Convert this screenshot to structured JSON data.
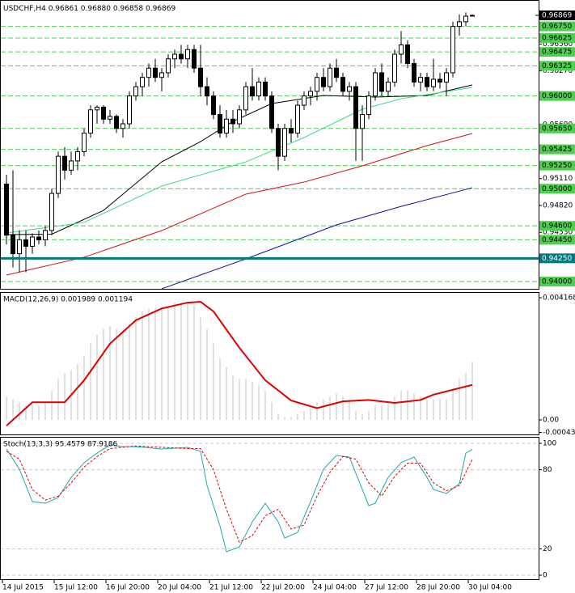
{
  "chart_data": [
    {
      "type": "candlestick",
      "title": "USDCHF,H4",
      "ohlc_labels": [
        "0.96861",
        "0.96880",
        "0.96858",
        "0.96869"
      ],
      "candles": [
        [
          0.9505,
          0.9515,
          0.944,
          0.945
        ],
        [
          0.945,
          0.952,
          0.9415,
          0.943
        ],
        [
          0.943,
          0.9455,
          0.941,
          0.9445
        ],
        [
          0.9445,
          0.9455,
          0.941,
          0.9438
        ],
        [
          0.9438,
          0.9452,
          0.943,
          0.9448
        ],
        [
          0.9448,
          0.9455,
          0.944,
          0.9445
        ],
        [
          0.9445,
          0.946,
          0.9438,
          0.9455
        ],
        [
          0.9455,
          0.95,
          0.945,
          0.9495
        ],
        [
          0.9495,
          0.954,
          0.949,
          0.9535
        ],
        [
          0.9535,
          0.9545,
          0.951,
          0.952
        ],
        [
          0.952,
          0.954,
          0.9515,
          0.953
        ],
        [
          0.953,
          0.9545,
          0.952,
          0.954
        ],
        [
          0.954,
          0.9565,
          0.9535,
          0.956
        ],
        [
          0.956,
          0.959,
          0.9555,
          0.9585
        ],
        [
          0.9585,
          0.959,
          0.957,
          0.9588
        ],
        [
          0.9588,
          0.959,
          0.957,
          0.9575
        ],
        [
          0.9575,
          0.9585,
          0.957,
          0.9578
        ],
        [
          0.9578,
          0.958,
          0.956,
          0.9565
        ],
        [
          0.9565,
          0.9575,
          0.9555,
          0.957
        ],
        [
          0.957,
          0.9605,
          0.9565,
          0.96
        ],
        [
          0.96,
          0.9615,
          0.9595,
          0.961
        ],
        [
          0.961,
          0.9625,
          0.96,
          0.962
        ],
        [
          0.962,
          0.9635,
          0.961,
          0.963
        ],
        [
          0.963,
          0.964,
          0.9615,
          0.962
        ],
        [
          0.962,
          0.963,
          0.9605,
          0.9625
        ],
        [
          0.9625,
          0.9645,
          0.962,
          0.964
        ],
        [
          0.964,
          0.965,
          0.963,
          0.9645
        ],
        [
          0.9645,
          0.9655,
          0.9635,
          0.964
        ],
        [
          0.964,
          0.9655,
          0.963,
          0.965
        ],
        [
          0.965,
          0.9655,
          0.9625,
          0.963
        ],
        [
          0.963,
          0.9655,
          0.96,
          0.961
        ],
        [
          0.961,
          0.962,
          0.959,
          0.96
        ],
        [
          0.96,
          0.9605,
          0.9575,
          0.958
        ],
        [
          0.958,
          0.959,
          0.9555,
          0.956
        ],
        [
          0.956,
          0.9585,
          0.9555,
          0.9575
        ],
        [
          0.9575,
          0.9585,
          0.956,
          0.957
        ],
        [
          0.957,
          0.959,
          0.9565,
          0.9585
        ],
        [
          0.9585,
          0.9615,
          0.958,
          0.961
        ],
        [
          0.961,
          0.963,
          0.9595,
          0.96
        ],
        [
          0.96,
          0.962,
          0.9595,
          0.9615
        ],
        [
          0.9615,
          0.962,
          0.9595,
          0.96
        ],
        [
          0.96,
          0.9605,
          0.956,
          0.9565
        ],
        [
          0.9565,
          0.957,
          0.952,
          0.9535
        ],
        [
          0.9535,
          0.957,
          0.953,
          0.9565
        ],
        [
          0.9565,
          0.9575,
          0.955,
          0.956
        ],
        [
          0.956,
          0.9595,
          0.9555,
          0.959
        ],
        [
          0.959,
          0.9605,
          0.9585,
          0.96
        ],
        [
          0.96,
          0.961,
          0.959,
          0.9605
        ],
        [
          0.9605,
          0.9625,
          0.9595,
          0.962
        ],
        [
          0.962,
          0.963,
          0.9605,
          0.961
        ],
        [
          0.961,
          0.9635,
          0.9605,
          0.963
        ],
        [
          0.963,
          0.964,
          0.9615,
          0.962
        ],
        [
          0.962,
          0.9625,
          0.96,
          0.9605
        ],
        [
          0.9605,
          0.9615,
          0.9595,
          0.961
        ],
        [
          0.961,
          0.9615,
          0.953,
          0.9565
        ],
        [
          0.9565,
          0.959,
          0.953,
          0.958
        ],
        [
          0.958,
          0.9605,
          0.9575,
          0.96
        ],
        [
          0.96,
          0.963,
          0.9595,
          0.9625
        ],
        [
          0.9625,
          0.9635,
          0.96,
          0.9605
        ],
        [
          0.9605,
          0.962,
          0.96,
          0.9615
        ],
        [
          0.9615,
          0.965,
          0.961,
          0.9645
        ],
        [
          0.9645,
          0.967,
          0.9635,
          0.9655
        ],
        [
          0.9655,
          0.966,
          0.963,
          0.9635
        ],
        [
          0.9635,
          0.964,
          0.961,
          0.9615
        ],
        [
          0.9615,
          0.9625,
          0.9605,
          0.962
        ],
        [
          0.962,
          0.9625,
          0.9605,
          0.961
        ],
        [
          0.961,
          0.964,
          0.9605,
          0.9618
        ],
        [
          0.9618,
          0.9625,
          0.9608,
          0.9615
        ],
        [
          0.9615,
          0.963,
          0.96,
          0.9625
        ],
        [
          0.9625,
          0.968,
          0.962,
          0.9675
        ],
        [
          0.9675,
          0.9688,
          0.9665,
          0.968
        ],
        [
          0.968,
          0.969,
          0.9675,
          0.9686
        ],
        [
          0.96861,
          0.9688,
          0.96858,
          0.96869
        ]
      ],
      "ylim": [
        0.939215,
        0.970343
      ],
      "yticks": [
        {
          "value": 0.9656,
          "label": "0.96560"
        },
        {
          "value": 0.9627,
          "label": "0.96270"
        },
        {
          "value": 0.9569,
          "label": "0.95690"
        },
        {
          "value": 0.954,
          "label": "0.95400"
        },
        {
          "value": 0.9511,
          "label": "0.95110"
        },
        {
          "value": 0.9482,
          "label": "0.94820"
        },
        {
          "value": 0.9453,
          "label": "0.94530"
        }
      ],
      "levels": [
        {
          "value": 0.9675,
          "label": "0.96750"
        },
        {
          "value": 0.96625,
          "label": "0.96625"
        },
        {
          "value": 0.96475,
          "label": "0.96475"
        },
        {
          "value": 0.96325,
          "label": "0.96325"
        },
        {
          "value": 0.96,
          "label": "0.96000"
        },
        {
          "value": 0.9565,
          "label": "0.95650"
        },
        {
          "value": 0.95425,
          "label": "0.95425"
        },
        {
          "value": 0.9525,
          "label": "0.95250"
        },
        {
          "value": 0.95,
          "label": "0.95000"
        },
        {
          "value": 0.946,
          "label": "0.94600"
        },
        {
          "value": 0.9445,
          "label": "0.94450"
        },
        {
          "value": 0.94,
          "label": "0.94000"
        }
      ],
      "level_color": "#4fcf4f",
      "support": {
        "value": 0.9425,
        "label": "0.94250",
        "color": "#007a7a"
      },
      "current_price": {
        "value": 0.96869,
        "label": "0.96869"
      },
      "moving_averages": [
        {
          "color": "#000000",
          "x": [
            0,
            7,
            15,
            24,
            30,
            35,
            41,
            49,
            57,
            65,
            72
          ],
          "values": [
            0.94506,
            0.9451,
            0.94767,
            0.9529,
            0.95508,
            0.95726,
            0.95918,
            0.96005,
            0.95988,
            0.96005,
            0.96119
          ]
        },
        {
          "color": "#3cd88a",
          "x": [
            0,
            12,
            24,
            37,
            46,
            55,
            61,
            72
          ],
          "values": [
            0.94523,
            0.94637,
            0.95029,
            0.9529,
            0.95552,
            0.95857,
            0.9597,
            0.96093
          ]
        },
        {
          "color": "#d01010",
          "x": [
            0,
            12,
            24,
            37,
            46,
            55,
            65,
            72
          ],
          "values": [
            0.9407,
            0.94262,
            0.94549,
            0.94942,
            0.95072,
            0.95247,
            0.95465,
            0.95596
          ]
        },
        {
          "color": "#10109a",
          "x": [
            24,
            37,
            51,
            61,
            72
          ],
          "values": [
            0.93922,
            0.94244,
            0.9461,
            0.9481,
            0.95011
          ]
        }
      ]
    },
    {
      "type": "macd",
      "title": "MACD(12,26,9) 0.001989 0.001194",
      "histogram": [
        0.0008,
        0.0007,
        0.0006,
        0.0005,
        0.0005,
        0.0005,
        0.0006,
        0.001,
        0.0014,
        0.0016,
        0.0017,
        0.0019,
        0.0022,
        0.0026,
        0.0029,
        0.0031,
        0.0032,
        0.0031,
        0.0031,
        0.0033,
        0.0035,
        0.0037,
        0.0038,
        0.0038,
        0.0038,
        0.0039,
        0.004,
        0.004,
        0.004,
        0.0039,
        0.0035,
        0.0031,
        0.0026,
        0.0021,
        0.0018,
        0.0015,
        0.0014,
        0.0014,
        0.0013,
        0.0012,
        0.001,
        0.0006,
        0.0002,
        0.0001,
        0.0001,
        0.0002,
        0.0003,
        0.0004,
        0.0006,
        0.0007,
        0.0008,
        0.0009,
        0.0008,
        0.0007,
        0.0003,
        0.0002,
        0.0003,
        0.0005,
        0.0005,
        0.0006,
        0.0008,
        0.001,
        0.001,
        0.0009,
        0.0008,
        0.0007,
        0.0007,
        0.0007,
        0.0007,
        0.0011,
        0.0014,
        0.0016,
        0.001989
      ],
      "histogram_color": "#c0c0c0",
      "signal": {
        "color": "#e00000",
        "x": [
          0,
          4,
          9,
          12,
          16,
          20,
          24,
          28,
          30,
          32,
          36,
          40,
          44,
          48,
          52,
          56,
          60,
          64,
          66,
          72
        ],
        "values": [
          -0.0002,
          0.0006,
          0.0006,
          0.00135,
          0.0026,
          0.0034,
          0.0038,
          0.004,
          0.00403,
          0.0037,
          0.00246,
          0.00135,
          0.00066,
          0.0004,
          0.00063,
          0.00068,
          0.00058,
          0.00068,
          0.00086,
          0.001194
        ]
      },
      "ylim": [
        -0.000497,
        0.0043336
      ],
      "yticks": [
        0.004168,
        {
          "value": 0,
          "label": "0.00"
        },
        -0.000431
      ]
    },
    {
      "type": "stochastic",
      "title": "Stoch(13,3,3) 95.4579 87.9186",
      "main": {
        "color": "#20a8b0",
        "x": [
          0,
          2,
          4,
          6,
          8,
          10,
          12,
          14,
          16,
          18,
          20,
          24,
          28,
          30,
          31,
          33,
          34,
          36,
          38,
          40,
          42,
          43,
          45,
          47,
          49,
          51,
          53,
          54,
          56,
          57,
          59,
          61,
          63,
          65,
          66,
          68,
          70,
          71,
          72
        ],
        "values": [
          95.7,
          80.4,
          55.8,
          54.6,
          58.9,
          74.2,
          85.3,
          92.6,
          98.8,
          97.5,
          97.5,
          95.7,
          96.9,
          93.9,
          68.1,
          37.4,
          17.8,
          21.5,
          40.5,
          54.6,
          40.5,
          28.2,
          32.5,
          55.8,
          80.4,
          90.8,
          89.6,
          77.3,
          52.8,
          54.6,
          74.2,
          85.3,
          89.6,
          74.2,
          65,
          62,
          69.3,
          92.6,
          95.4579
        ]
      },
      "signal": {
        "color": "#e00000",
        "dashed": true,
        "x": [
          0,
          2,
          4,
          6,
          8,
          10,
          12,
          14,
          16,
          20,
          28,
          30,
          32,
          34,
          36,
          38,
          40,
          42,
          44,
          46,
          48,
          50,
          52,
          54,
          56,
          58,
          60,
          62,
          64,
          66,
          68,
          70,
          72
        ],
        "values": [
          94,
          88,
          65,
          57,
          60,
          70,
          82,
          90,
          96,
          98,
          96,
          96,
          80,
          50,
          25,
          30,
          45,
          50,
          35,
          38,
          60,
          78,
          90,
          88,
          70,
          60,
          75,
          85,
          85,
          70,
          64,
          68,
          87.9186
        ]
      },
      "ylim": [
        -3.07,
        104.29
      ],
      "yticks": [
        100,
        80,
        20,
        0
      ],
      "x_labels": [
        "14 Jul 2015",
        "15 Jul 12:00",
        "16 Jul 20:00",
        "20 Jul 04:00",
        "21 Jul 12:00",
        "22 Jul 20:00",
        "24 Jul 04:00",
        "27 Jul 12:00",
        "28 Jul 20:00",
        "30 Jul 04:00"
      ]
    }
  ]
}
